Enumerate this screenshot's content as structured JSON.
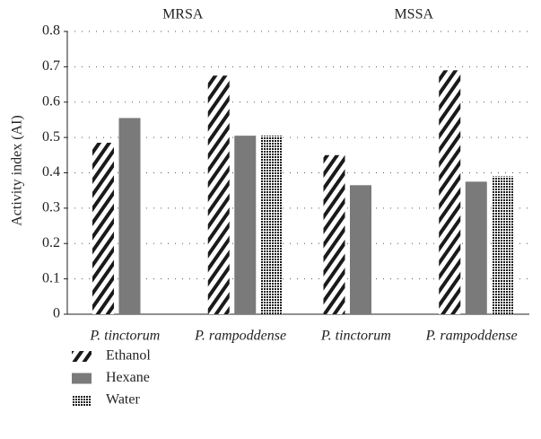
{
  "chart_data": {
    "type": "bar",
    "y_label": "Activity index (AI)",
    "group_labels": [
      "MRSA",
      "MSSA"
    ],
    "categories": [
      "P. tinctorum",
      "P. rampoddense",
      "P. tinctorum",
      "P. rampoddense"
    ],
    "series": [
      {
        "name": "Ethanol",
        "color": "#1a1a1a",
        "pattern": "diagonal",
        "values": [
          0.485,
          0.675,
          0.45,
          0.69
        ]
      },
      {
        "name": "Hexane",
        "color": "#7a7a7a",
        "pattern": "solid",
        "values": [
          0.555,
          0.505,
          0.365,
          0.375
        ]
      },
      {
        "name": "Water",
        "color": "#1a1a1a",
        "pattern": "checker",
        "values": [
          null,
          0.505,
          null,
          0.39
        ]
      }
    ],
    "ylim": [
      0,
      0.8
    ],
    "yticks": [
      0,
      0.1,
      0.2,
      0.3,
      0.4,
      0.5,
      0.6,
      0.7,
      0.8
    ],
    "grid": true
  }
}
